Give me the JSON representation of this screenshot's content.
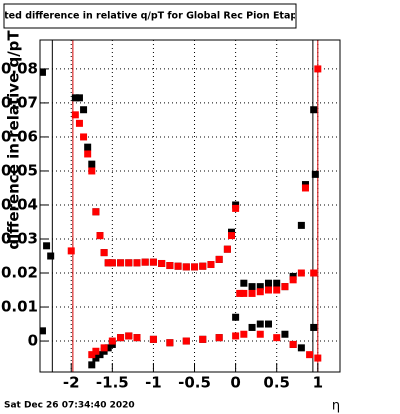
{
  "chart_data": {
    "type": "scatter",
    "title": "itted difference in relative q/pT for Global Rec Pion EtapT",
    "y_label": "difference in relative q/pT",
    "x_label": "η",
    "footer": "Sat Dec 26 07:34:40 2020",
    "xlim": [
      -2.38,
      1.27
    ],
    "ylim": [
      -0.0091,
      0.0885
    ],
    "xticks": [
      -2,
      -1.5,
      -1,
      -0.5,
      0,
      0.5,
      1
    ],
    "yticks": [
      0,
      0.01,
      0.02,
      0.03,
      0.04,
      0.05,
      0.06,
      0.07,
      0.08
    ],
    "grid": true,
    "vlines": [
      {
        "x": -2.23,
        "color": "#000000"
      },
      {
        "x": -1.98,
        "color": "#d00000"
      },
      {
        "x": 0.94,
        "color": "#000000"
      },
      {
        "x": 1.0,
        "color": "#d00000"
      }
    ],
    "series": [
      {
        "color": "#000000",
        "x": [
          -2.35,
          -2.3,
          -2.25,
          -1.95,
          -1.9,
          -1.85,
          -1.8,
          -1.75,
          -1.7,
          -1.65,
          -1.6,
          -1.55,
          -1.5,
          -1.4,
          -1.3,
          -1.2,
          -1.1,
          -1.0,
          -0.9,
          -0.8,
          -0.7,
          -0.6,
          -0.5,
          -0.4,
          -0.3,
          -0.2,
          -0.1,
          -0.05,
          0.0,
          0.1,
          0.2,
          0.3,
          0.4,
          0.5,
          0.6,
          0.7,
          0.8,
          0.85,
          0.95,
          0.97
        ],
        "values": [
          0.079,
          0.028,
          0.025,
          0.0715,
          0.0715,
          0.068,
          0.057,
          0.052,
          0.038,
          0.031,
          0.026,
          0.023,
          0.023,
          0.023,
          0.023,
          0.023,
          0.0232,
          0.0232,
          0.0228,
          0.0222,
          0.022,
          0.0218,
          0.0218,
          0.022,
          0.0225,
          0.024,
          0.027,
          0.032,
          0.04,
          0.017,
          0.016,
          0.016,
          0.017,
          0.017,
          0.016,
          0.019,
          0.034,
          0.046,
          0.068,
          0.049
        ]
      },
      {
        "color": "#000000",
        "x": [
          -2.35,
          -1.75,
          -1.7,
          -1.65,
          -1.6,
          -1.55,
          -1.5,
          -1.4,
          -1.3,
          -1.2,
          -1.0,
          -0.8,
          -0.6,
          -0.4,
          -0.2,
          0.0,
          0.2,
          0.3,
          0.4,
          0.6,
          0.7,
          0.8,
          0.95
        ],
        "values": [
          0.003,
          -0.007,
          -0.005,
          -0.004,
          -0.003,
          -0.002,
          -0.001,
          0.001,
          0.0015,
          0.001,
          0.0005,
          -0.0005,
          0.0,
          0.0005,
          0.001,
          0.007,
          0.004,
          0.005,
          0.005,
          0.002,
          -0.001,
          -0.002,
          0.004
        ]
      },
      {
        "color": "#ff0000",
        "x": [
          -2.0,
          -1.95,
          -1.9,
          -1.85,
          -1.8,
          -1.75,
          -1.7,
          -1.65,
          -1.6,
          -1.55,
          -1.5,
          -1.4,
          -1.3,
          -1.2,
          -1.1,
          -1.0,
          -0.9,
          -0.8,
          -0.7,
          -0.6,
          -0.5,
          -0.4,
          -0.3,
          -0.2,
          -0.1,
          -0.05,
          0.0,
          0.05,
          0.1,
          0.2,
          0.3,
          0.4,
          0.5,
          0.6,
          0.7,
          0.8,
          0.85,
          0.95,
          1.0
        ],
        "values": [
          0.0265,
          0.0665,
          0.064,
          0.06,
          0.055,
          0.05,
          0.038,
          0.031,
          0.026,
          0.023,
          0.023,
          0.023,
          0.023,
          0.023,
          0.0232,
          0.0232,
          0.0228,
          0.0222,
          0.022,
          0.0218,
          0.0218,
          0.022,
          0.0225,
          0.024,
          0.027,
          0.031,
          0.039,
          0.014,
          0.014,
          0.014,
          0.0145,
          0.015,
          0.015,
          0.016,
          0.018,
          0.02,
          0.045,
          0.02,
          0.08
        ]
      },
      {
        "color": "#ff0000",
        "x": [
          -1.75,
          -1.7,
          -1.6,
          -1.5,
          -1.4,
          -1.3,
          -1.2,
          -1.0,
          -0.8,
          -0.6,
          -0.4,
          -0.2,
          0.0,
          0.1,
          0.3,
          0.5,
          0.7,
          0.9,
          1.0
        ],
        "values": [
          -0.004,
          -0.003,
          -0.002,
          0.0,
          0.001,
          0.0015,
          0.001,
          0.0005,
          -0.0005,
          0.0,
          0.0005,
          0.001,
          0.0015,
          0.002,
          0.002,
          0.001,
          -0.001,
          -0.004,
          -0.005
        ]
      }
    ]
  }
}
